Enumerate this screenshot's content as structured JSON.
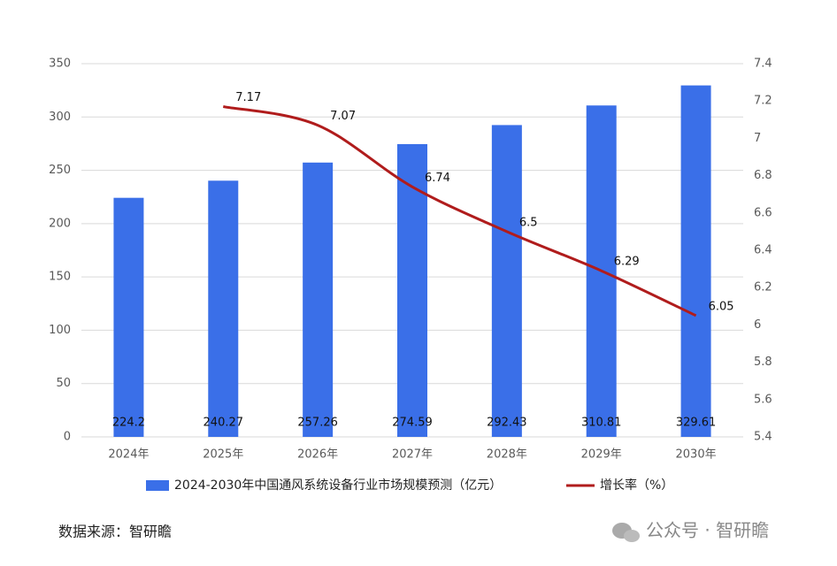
{
  "chart_data": {
    "type": "bar",
    "categories": [
      "2024年",
      "2025年",
      "2026年",
      "2027年",
      "2028年",
      "2029年",
      "2030年"
    ],
    "series": [
      {
        "name": "2024-2030年中国通风系统设备行业市场规模预测（亿元）",
        "color": "#3a6fe8",
        "values": [
          224.2,
          240.27,
          257.26,
          274.59,
          292.43,
          310.81,
          329.61
        ]
      },
      {
        "name": "增长率（%）",
        "type": "line",
        "axis": "y2",
        "color": "#b01c1c",
        "values": [
          null,
          7.17,
          7.07,
          6.74,
          6.5,
          6.29,
          6.05
        ]
      }
    ],
    "ylim": [
      0,
      350
    ],
    "yticks": [
      0,
      50,
      100,
      150,
      200,
      250,
      300,
      350
    ],
    "y2lim": [
      5.4,
      7.4
    ],
    "y2ticks": [
      5.4,
      5.6,
      5.8,
      6,
      6.2,
      6.4,
      6.6,
      6.8,
      7,
      7.2,
      7.4
    ],
    "grid": true,
    "source": "数据来源：智研瞻",
    "watermark": "公众号 · 智研瞻"
  }
}
